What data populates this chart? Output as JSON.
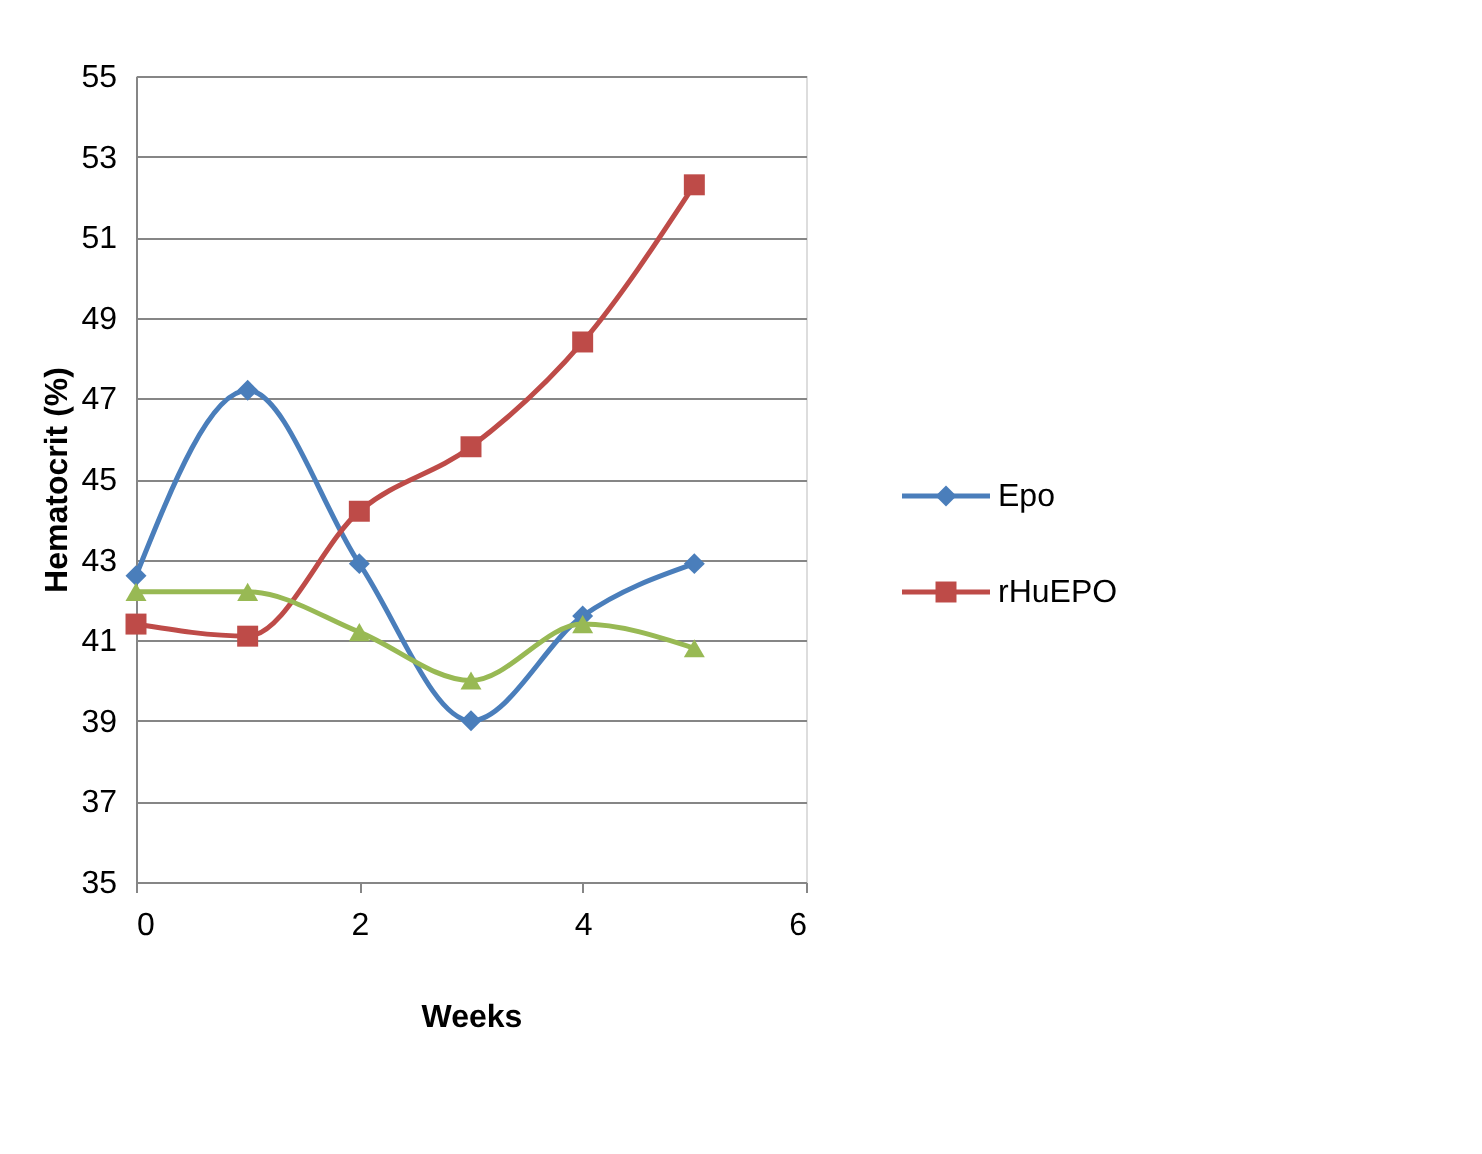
{
  "chart_data": {
    "type": "line",
    "xlabel": "Weeks",
    "ylabel": "Hematocrit (%)",
    "x": [
      0,
      1,
      2,
      3,
      4,
      5
    ],
    "series": [
      {
        "name": "Epo",
        "color": "#4a7ebb",
        "marker": "diamond",
        "values": [
          42.6,
          47.2,
          42.9,
          39.0,
          41.6,
          42.9
        ]
      },
      {
        "name": "rHuEPO",
        "color": "#be4b48",
        "marker": "square",
        "values": [
          41.4,
          41.1,
          44.2,
          45.8,
          48.4,
          52.3
        ]
      },
      {
        "color": "#98b954",
        "marker": "triangle",
        "values": [
          42.2,
          42.2,
          41.2,
          40.0,
          41.4,
          40.8
        ]
      }
    ],
    "xlim": [
      0,
      6
    ],
    "xticks": [
      0,
      2,
      4,
      6
    ],
    "ylim": [
      35,
      55
    ],
    "yticks": [
      35,
      37,
      39,
      41,
      43,
      45,
      47,
      49,
      51,
      53,
      55
    ],
    "grid": "y",
    "legend": "right",
    "line_style": "solid"
  }
}
